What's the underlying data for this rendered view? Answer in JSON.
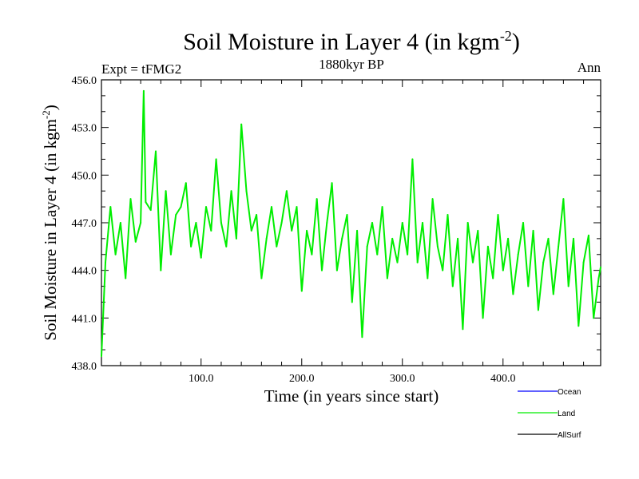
{
  "chart_data": {
    "type": "line",
    "title": "Soil Moisture in Layer 4 (in kgm",
    "title_sup": "-2",
    "title_close": ")",
    "subtitle_left": "Expt = tFMG2",
    "subtitle_center": "1880kyr BP",
    "subtitle_right": "Ann",
    "xlabel": "Time (in years since start)",
    "ylabel": "Soil Moisture in Layer 4 (in kgm",
    "ylabel_sup": "-2",
    "ylabel_close": ")",
    "xlim": [
      1,
      497
    ],
    "ylim": [
      438.0,
      456.0
    ],
    "x_ticks": [
      100,
      200,
      300,
      400
    ],
    "x_tick_labels": [
      "100.0",
      "200.0",
      "300.0",
      "400.0"
    ],
    "y_ticks": [
      438,
      441,
      444,
      447,
      450,
      453,
      456
    ],
    "y_tick_labels": [
      "438.0",
      "441.0",
      "444.0",
      "447.0",
      "450.0",
      "453.0",
      "456.0"
    ],
    "legend": [
      {
        "name": "Ocean",
        "color": "#0000ff"
      },
      {
        "name": "Land",
        "color": "#00ee00"
      },
      {
        "name": "AllSurf",
        "color": "#000000"
      }
    ],
    "legend_position": "bottom-right",
    "series": [
      {
        "name": "Land",
        "color": "#00ee00",
        "x": [
          1,
          5,
          10,
          15,
          20,
          25,
          30,
          35,
          40,
          43,
          45,
          50,
          55,
          60,
          65,
          70,
          75,
          80,
          85,
          90,
          95,
          100,
          105,
          110,
          115,
          120,
          125,
          130,
          135,
          140,
          145,
          150,
          155,
          160,
          165,
          170,
          175,
          180,
          185,
          190,
          195,
          200,
          205,
          210,
          215,
          220,
          225,
          230,
          235,
          240,
          245,
          250,
          255,
          260,
          265,
          270,
          275,
          280,
          285,
          290,
          295,
          300,
          305,
          310,
          315,
          320,
          325,
          330,
          335,
          340,
          345,
          350,
          355,
          360,
          365,
          370,
          375,
          380,
          385,
          390,
          395,
          400,
          405,
          410,
          415,
          420,
          425,
          430,
          435,
          440,
          445,
          450,
          455,
          460,
          465,
          470,
          475,
          480,
          485,
          490,
          495,
          497
        ],
        "values": [
          438.6,
          444.5,
          448.0,
          445.0,
          447.0,
          443.5,
          448.5,
          445.8,
          447.0,
          455.3,
          448.3,
          447.8,
          451.5,
          444.0,
          449.0,
          445.0,
          447.5,
          448.0,
          449.5,
          445.5,
          447.0,
          444.8,
          448.0,
          446.5,
          451.0,
          447.0,
          445.5,
          449.0,
          446.0,
          453.2,
          449.0,
          446.5,
          447.5,
          443.5,
          446.0,
          448.0,
          445.5,
          447.0,
          449.0,
          446.5,
          448.0,
          442.7,
          446.5,
          445.0,
          448.5,
          444.0,
          447.0,
          449.5,
          444.0,
          446.0,
          447.5,
          442.0,
          446.5,
          439.8,
          445.5,
          447.0,
          445.0,
          448.0,
          443.5,
          446.0,
          444.5,
          447.0,
          445.0,
          451.0,
          444.5,
          447.0,
          443.5,
          448.5,
          445.5,
          444.0,
          447.5,
          443.0,
          446.0,
          440.3,
          447.0,
          444.5,
          446.5,
          441.0,
          445.5,
          443.5,
          447.5,
          444.0,
          446.0,
          442.5,
          445.0,
          447.0,
          443.0,
          446.5,
          441.5,
          444.5,
          446.0,
          442.5,
          445.5,
          448.5,
          443.0,
          446.0,
          440.5,
          444.5,
          446.2,
          441.0,
          443.5,
          444.2
        ]
      }
    ]
  }
}
